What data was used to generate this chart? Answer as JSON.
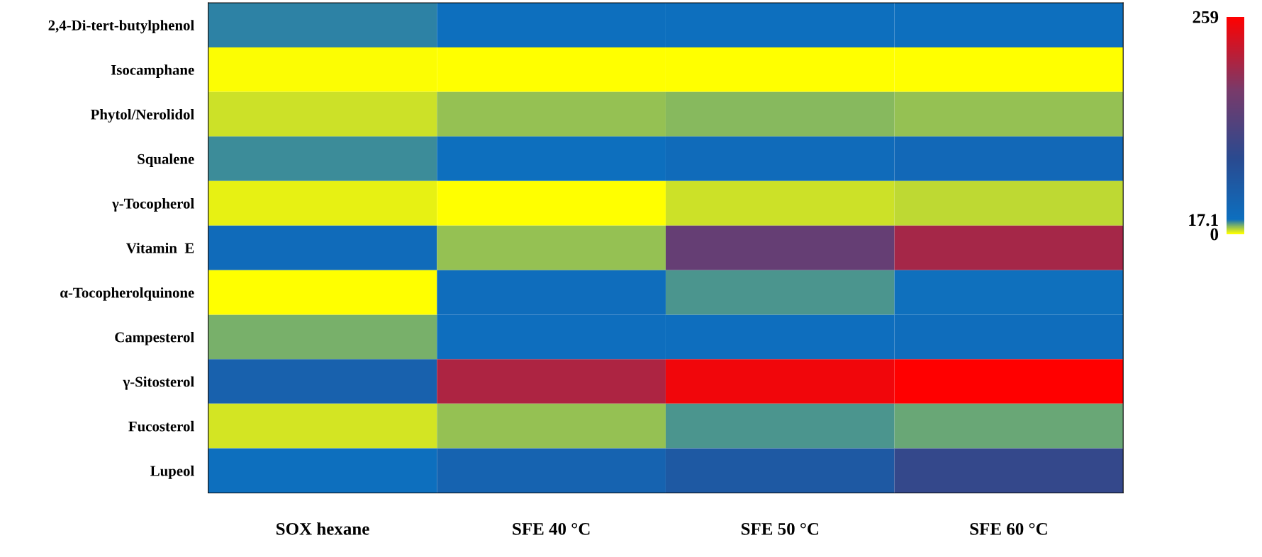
{
  "chart_data": {
    "type": "heatmap",
    "categories": [
      "SOX hexane",
      "SFE 40 °C",
      "SFE 50 °C",
      "SFE 60 °C"
    ],
    "y_categories": [
      "2,4-Di-tert-butylphenol",
      "Isocamphane",
      "Phytol/Nerolidol",
      "Squalene",
      "γ-Tocopherol",
      "Vitamin  E",
      "α-Tocopherolquinone",
      "Campesterol",
      "γ-Sitosterol",
      "Fucosterol",
      "Lupeol"
    ],
    "cells": [
      [
        15,
        18,
        18,
        18
      ],
      [
        0.5,
        0,
        0,
        0
      ],
      [
        4,
        8,
        9,
        8
      ],
      [
        14,
        18,
        25,
        30
      ],
      [
        2,
        0,
        4,
        5
      ],
      [
        25,
        8,
        150,
        200
      ],
      [
        0,
        22,
        13,
        17
      ],
      [
        10,
        19,
        19,
        21
      ],
      [
        45,
        205,
        250,
        259
      ],
      [
        3.5,
        8,
        13,
        11
      ],
      [
        18,
        40,
        60,
        100
      ]
    ],
    "clim": [
      0,
      259
    ],
    "cticks": [
      0,
      17.1,
      259
    ]
  }
}
